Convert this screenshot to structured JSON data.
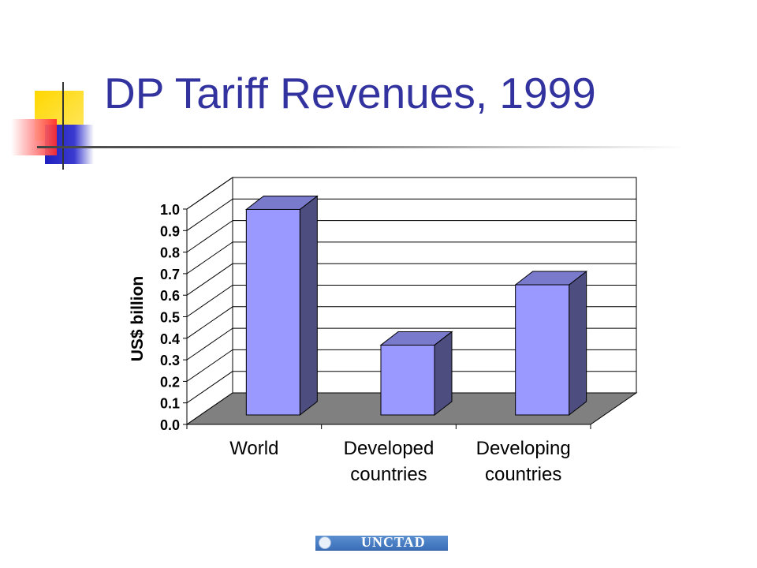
{
  "slide": {
    "title": "DP Tariff Revenues, 1999",
    "footer_logo_text": "UNCTAD"
  },
  "colors": {
    "title": "#3333a0",
    "bar_front": "#9999ff",
    "bar_side": "#4d4d80",
    "bar_top": "#7a7acc",
    "floor": "#808080"
  },
  "chart_data": {
    "type": "bar",
    "style": "3d",
    "categories": [
      [
        "World"
      ],
      [
        "Developed",
        "countries"
      ],
      [
        "Developing",
        "countries"
      ]
    ],
    "values": [
      0.98,
      0.35,
      0.63
    ],
    "ylabel": "US$ billion",
    "xlabel": "",
    "ylim": [
      0,
      1.0
    ],
    "yticks": [
      "0.0",
      "0.1",
      "0.2",
      "0.3",
      "0.4",
      "0.5",
      "0.6",
      "0.7",
      "0.8",
      "0.9",
      "1.0"
    ],
    "grid": true,
    "legend": "none"
  }
}
